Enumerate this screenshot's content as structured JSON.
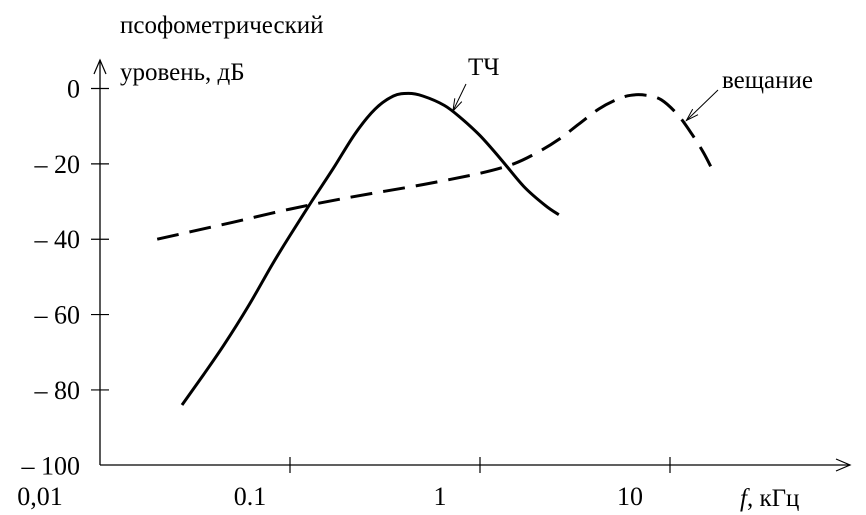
{
  "chart_data": {
    "type": "line",
    "x_scale": "log",
    "xlim": [
      0.01,
      30
    ],
    "ylim": [
      -100,
      5
    ],
    "ylabel_line1": "псофометрический",
    "ylabel_line2": "уровень, дБ",
    "xlabel_italic": "f",
    "xlabel_rest": ", кГц",
    "x_ticks": [
      0.01,
      0.1,
      1,
      10
    ],
    "x_tick_labels": [
      "0,01",
      "0.1",
      "1",
      "10"
    ],
    "y_ticks": [
      0,
      -20,
      -40,
      -60,
      -80,
      -100
    ],
    "y_tick_labels": [
      "0",
      "– 20",
      "– 40",
      "– 60",
      "– 80",
      "– 100"
    ],
    "series": [
      {
        "name": "ТЧ",
        "style": "solid",
        "color": "#000000",
        "points": [
          [
            0.027,
            -84
          ],
          [
            0.035,
            -76
          ],
          [
            0.045,
            -68
          ],
          [
            0.06,
            -58
          ],
          [
            0.08,
            -47
          ],
          [
            0.1,
            -39
          ],
          [
            0.13,
            -30
          ],
          [
            0.17,
            -21
          ],
          [
            0.22,
            -12
          ],
          [
            0.28,
            -5.5
          ],
          [
            0.35,
            -2
          ],
          [
            0.42,
            -1.3
          ],
          [
            0.5,
            -2
          ],
          [
            0.65,
            -4.5
          ],
          [
            0.8,
            -8
          ],
          [
            1.0,
            -12.5
          ],
          [
            1.3,
            -19
          ],
          [
            1.7,
            -26
          ],
          [
            2.2,
            -31
          ],
          [
            2.6,
            -33.5
          ]
        ]
      },
      {
        "name": "вещание",
        "style": "dashed",
        "color": "#000000",
        "points": [
          [
            0.02,
            -40
          ],
          [
            0.03,
            -38
          ],
          [
            0.05,
            -35.5
          ],
          [
            0.1,
            -32
          ],
          [
            0.2,
            -29
          ],
          [
            0.5,
            -25.5
          ],
          [
            1.0,
            -22.5
          ],
          [
            1.5,
            -20
          ],
          [
            2.0,
            -17
          ],
          [
            2.6,
            -13.5
          ],
          [
            3.3,
            -9.5
          ],
          [
            4.2,
            -5.5
          ],
          [
            5.2,
            -3
          ],
          [
            6.2,
            -1.8
          ],
          [
            7.5,
            -1.8
          ],
          [
            9.0,
            -3
          ],
          [
            11.0,
            -7
          ],
          [
            13.0,
            -12
          ],
          [
            15.0,
            -17
          ],
          [
            16.5,
            -21
          ]
        ]
      }
    ],
    "annotations": [
      {
        "text": "ТЧ",
        "series": "ТЧ",
        "point": [
          0.72,
          -6
        ]
      },
      {
        "text": "вещание",
        "series": "вещание",
        "point": [
          12.2,
          -8.5
        ]
      }
    ]
  }
}
